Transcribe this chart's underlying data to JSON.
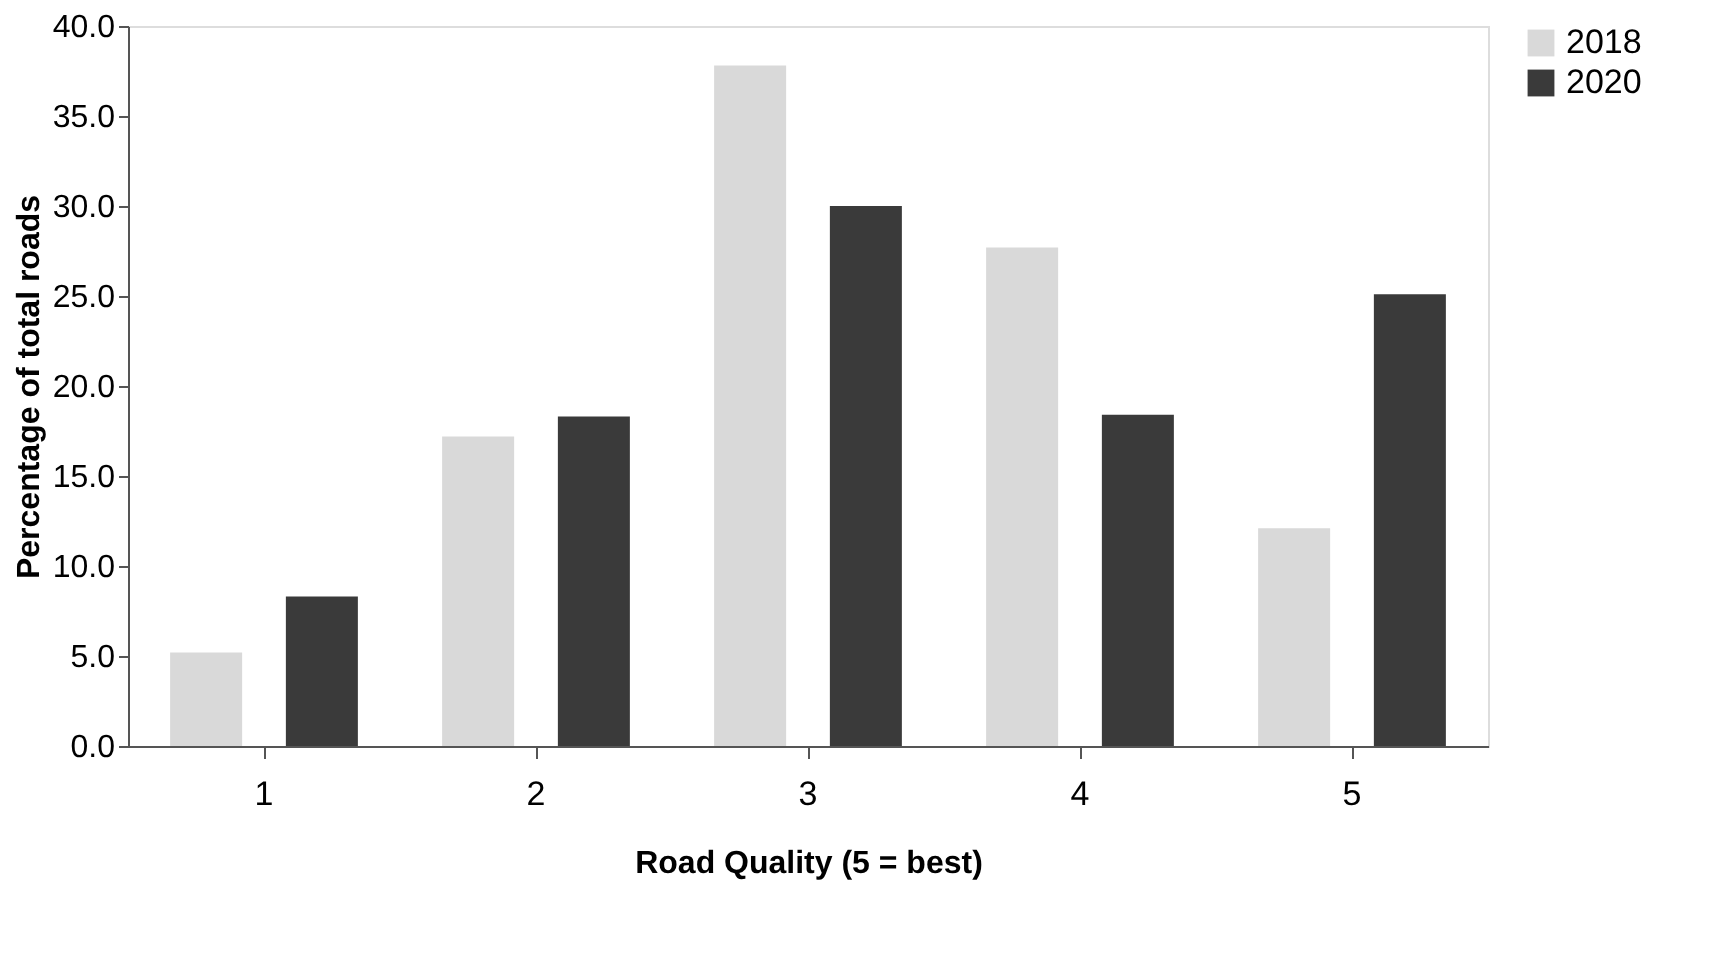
{
  "chart_data": {
    "type": "bar",
    "xlabel": "Road Quality (5 = best)",
    "ylabel": "Percentage of total roads",
    "categories": [
      "1",
      "2",
      "3",
      "4",
      "5"
    ],
    "series": [
      {
        "name": "2018",
        "color": "#d9d9d9",
        "values": [
          5.2,
          17.2,
          37.8,
          27.7,
          12.1
        ]
      },
      {
        "name": "2020",
        "color": "#3a3a3a",
        "values": [
          8.3,
          18.3,
          30.0,
          18.4,
          25.1
        ]
      }
    ],
    "ylim": [
      0,
      40
    ],
    "yticks": [
      {
        "value": 0,
        "label": "0.0"
      },
      {
        "value": 5,
        "label": "5.0"
      },
      {
        "value": 10,
        "label": "10.0"
      },
      {
        "value": 15,
        "label": "15.0"
      },
      {
        "value": 20,
        "label": "20.0"
      },
      {
        "value": 25,
        "label": "25.0"
      },
      {
        "value": 30,
        "label": "30.0"
      },
      {
        "value": 35,
        "label": "35.0"
      },
      {
        "value": 40,
        "label": "40.0"
      }
    ],
    "grid": false,
    "legend": "top right"
  }
}
